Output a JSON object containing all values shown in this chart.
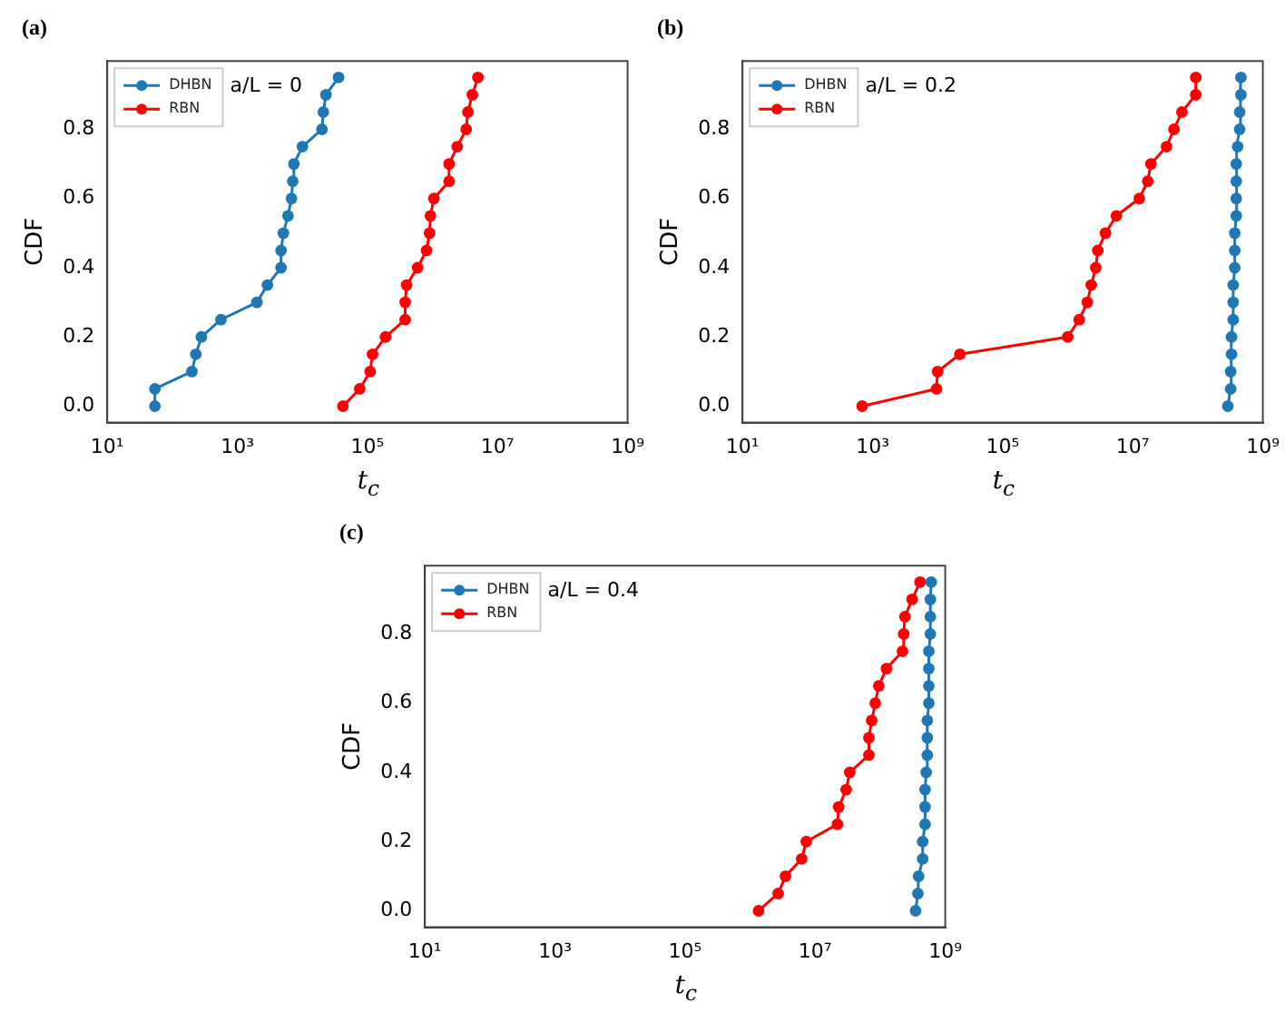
{
  "chart_data": [
    {
      "type": "line",
      "title": "(a)",
      "xlabel": "t$_{c}$",
      "ylabel": "CDF",
      "annotations": [
        "a/L = 0"
      ],
      "log": "x",
      "grid": false,
      "legend": "top left",
      "marker": "circle",
      "line_style": "solid",
      "xlim": [
        10,
        1000000000
      ],
      "ylim": [
        -0.0475,
        0.9975
      ],
      "xticks": [
        {
          "value": 10,
          "label": "10¹"
        },
        {
          "value": 1000,
          "label": "10³"
        },
        {
          "value": 100000,
          "label": "10⁵"
        },
        {
          "value": 10000000,
          "label": "10⁷"
        },
        {
          "value": 1000000000,
          "label": "10⁹"
        }
      ],
      "yticks": [
        {
          "value": 0,
          "label": "0.0"
        },
        {
          "value": 0.2,
          "label": "0.2"
        },
        {
          "value": 0.4,
          "label": "0.4"
        },
        {
          "value": 0.6,
          "label": "0.6"
        },
        {
          "value": 0.8,
          "label": "0.8"
        }
      ],
      "series": [
        {
          "name": "DHBN",
          "color": "#1f77b4",
          "x": [
            54,
            54,
            200,
            230,
            280,
            560,
            2000,
            2900,
            4700,
            4700,
            5100,
            6000,
            6800,
            7100,
            7400,
            10000,
            20000,
            21000,
            23000,
            36000
          ],
          "values": [
            0,
            0.05,
            0.1,
            0.15,
            0.2,
            0.25,
            0.3,
            0.35,
            0.4,
            0.45,
            0.5,
            0.55,
            0.6,
            0.65,
            0.7,
            0.75,
            0.8,
            0.85,
            0.9,
            0.95
          ]
        },
        {
          "name": "RBN",
          "color": "#ff0000",
          "x": [
            42000,
            76000,
            110000,
            120000,
            190000,
            380000,
            380000,
            400000,
            590000,
            810000,
            900000,
            930000,
            1050000,
            1800000,
            1800000,
            2400000,
            3300000,
            3500000,
            4100000,
            5000000
          ],
          "values": [
            0,
            0.05,
            0.1,
            0.15,
            0.2,
            0.25,
            0.3,
            0.35,
            0.4,
            0.45,
            0.5,
            0.55,
            0.6,
            0.65,
            0.7,
            0.75,
            0.8,
            0.85,
            0.9,
            0.95
          ]
        }
      ]
    },
    {
      "type": "line",
      "title": "(b)",
      "xlabel": "t$_{c}$",
      "ylabel": "CDF",
      "annotations": [
        "a/L = 0.2"
      ],
      "log": "x",
      "grid": false,
      "legend": "top left",
      "marker": "circle",
      "line_style": "solid",
      "xlim": [
        10,
        1000000000
      ],
      "ylim": [
        -0.0475,
        0.9975
      ],
      "xticks": [
        {
          "value": 10,
          "label": "10¹"
        },
        {
          "value": 1000,
          "label": "10³"
        },
        {
          "value": 100000,
          "label": "10⁵"
        },
        {
          "value": 10000000,
          "label": "10⁷"
        },
        {
          "value": 1000000000,
          "label": "10⁹"
        }
      ],
      "yticks": [
        {
          "value": 0,
          "label": "0.0"
        },
        {
          "value": 0.2,
          "label": "0.2"
        },
        {
          "value": 0.4,
          "label": "0.4"
        },
        {
          "value": 0.6,
          "label": "0.6"
        },
        {
          "value": 0.8,
          "label": "0.8"
        }
      ],
      "series": [
        {
          "name": "DHBN",
          "color": "#1f77b4",
          "x": [
            290000000,
            320000000,
            320000000,
            330000000,
            330000000,
            350000000,
            350000000,
            350000000,
            370000000,
            370000000,
            370000000,
            390000000,
            390000000,
            390000000,
            390000000,
            410000000,
            440000000,
            440000000,
            460000000,
            460000000
          ],
          "values": [
            0,
            0.05,
            0.1,
            0.15,
            0.2,
            0.25,
            0.3,
            0.35,
            0.4,
            0.45,
            0.5,
            0.55,
            0.6,
            0.65,
            0.7,
            0.75,
            0.8,
            0.85,
            0.9,
            0.95
          ]
        },
        {
          "name": "RBN",
          "color": "#ff0000",
          "x": [
            690,
            9600,
            10000,
            22000,
            1000000,
            1500000,
            2000000,
            2300000,
            2700000,
            2900000,
            3800000,
            5600000,
            12600000,
            17000000,
            19000000,
            33000000,
            43000000,
            57000000,
            93000000,
            93000000
          ],
          "values": [
            0,
            0.05,
            0.1,
            0.15,
            0.2,
            0.25,
            0.3,
            0.35,
            0.4,
            0.45,
            0.5,
            0.55,
            0.6,
            0.65,
            0.7,
            0.75,
            0.8,
            0.85,
            0.9,
            0.95
          ]
        }
      ]
    },
    {
      "type": "line",
      "title": "(c)",
      "xlabel": "t$_{c}$",
      "ylabel": "CDF",
      "annotations": [
        "a/L = 0.4"
      ],
      "log": "x",
      "grid": false,
      "legend": "top left",
      "marker": "circle",
      "line_style": "solid",
      "xlim": [
        10,
        1000000000
      ],
      "ylim": [
        -0.0475,
        0.9975
      ],
      "xticks": [
        {
          "value": 10,
          "label": "10¹"
        },
        {
          "value": 1000,
          "label": "10³"
        },
        {
          "value": 100000,
          "label": "10⁵"
        },
        {
          "value": 10000000,
          "label": "10⁷"
        },
        {
          "value": 1000000000,
          "label": "10⁹"
        }
      ],
      "yticks": [
        {
          "value": 0,
          "label": "0.0"
        },
        {
          "value": 0.2,
          "label": "0.2"
        },
        {
          "value": 0.4,
          "label": "0.4"
        },
        {
          "value": 0.6,
          "label": "0.6"
        },
        {
          "value": 0.8,
          "label": "0.8"
        }
      ],
      "series": [
        {
          "name": "DHBN",
          "color": "#1f77b4",
          "x": [
            350000000,
            380000000,
            390000000,
            450000000,
            450000000,
            490000000,
            490000000,
            490000000,
            510000000,
            530000000,
            530000000,
            530000000,
            560000000,
            560000000,
            560000000,
            560000000,
            590000000,
            590000000,
            590000000,
            610000000
          ],
          "values": [
            0,
            0.05,
            0.1,
            0.15,
            0.2,
            0.25,
            0.3,
            0.35,
            0.4,
            0.45,
            0.5,
            0.55,
            0.6,
            0.65,
            0.7,
            0.75,
            0.8,
            0.85,
            0.9,
            0.95
          ]
        },
        {
          "name": "RBN",
          "color": "#ff0000",
          "x": [
            1350000,
            2700000,
            3500000,
            6200000,
            7300000,
            22000000,
            23000000,
            30000000,
            34000000,
            67000000,
            67000000,
            74000000,
            84000000,
            95000000,
            125000000,
            220000000,
            230000000,
            240000000,
            310000000,
            410000000
          ],
          "values": [
            0,
            0.05,
            0.1,
            0.15,
            0.2,
            0.25,
            0.3,
            0.35,
            0.4,
            0.45,
            0.5,
            0.55,
            0.6,
            0.65,
            0.7,
            0.75,
            0.8,
            0.85,
            0.9,
            0.95
          ]
        }
      ]
    }
  ]
}
